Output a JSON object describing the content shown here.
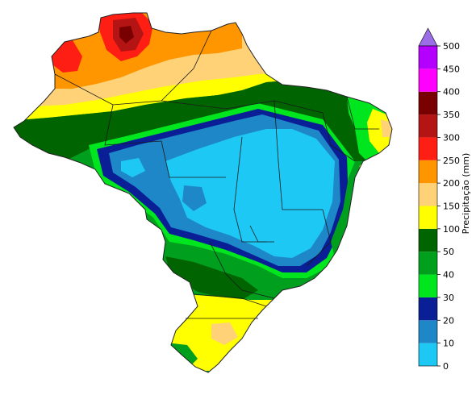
{
  "map": {
    "type": "choropleth-precipitation",
    "region": "Brazil",
    "has_state_borders": true
  },
  "colorbar": {
    "title": "Precipitação (mm)",
    "extend": "max",
    "levels": [
      0,
      10,
      20,
      30,
      40,
      50,
      100,
      150,
      200,
      250,
      300,
      350,
      400,
      450,
      500
    ],
    "tick_labels": [
      "0",
      "10",
      "20",
      "30",
      "40",
      "50",
      "100",
      "150",
      "200",
      "250",
      "300",
      "350",
      "400",
      "450",
      "500"
    ],
    "colors": [
      "#1ec8f5",
      "#1e87c8",
      "#0a1e96",
      "#00e61e",
      "#00a01e",
      "#006400",
      "#ffff00",
      "#ffd278",
      "#ff9600",
      "#ff1e14",
      "#b41414",
      "#780000",
      "#ff00ff",
      "#b400ff"
    ],
    "extend_color": "#9b6de6"
  }
}
